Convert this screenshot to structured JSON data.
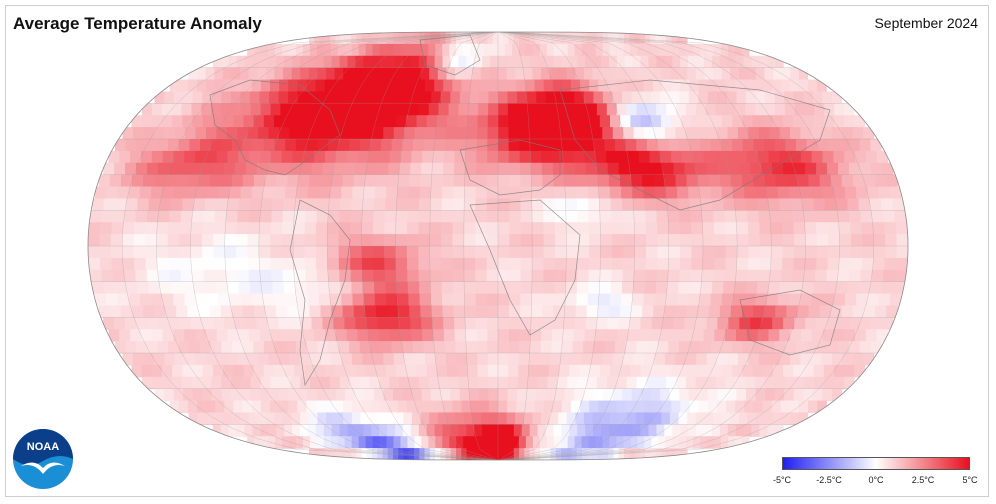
{
  "header": {
    "title": "Average Temperature Anomaly",
    "date": "September 2024"
  },
  "legend": {
    "ticks": [
      "-5°C",
      "-2.5°C",
      "0°C",
      "2.5°C",
      "5°C"
    ],
    "colors": {
      "cold": "#1f1ff0",
      "neutral": "#ffffff",
      "warm": "#e8101e"
    }
  },
  "logo": {
    "text": "NOAA",
    "colors": {
      "outer": "#1b8fd6",
      "inner": "#0b3f8a"
    }
  },
  "map": {
    "projection": "Robinson",
    "warm_regions": [
      "North Atlantic / Greenland",
      "Eastern Europe",
      "Central Asia",
      "South America interior",
      "Antarctic Peninsula region"
    ],
    "cold_regions": [
      "Central Siberia",
      "Antarctica (parts)",
      "Eastern Pacific"
    ]
  }
}
